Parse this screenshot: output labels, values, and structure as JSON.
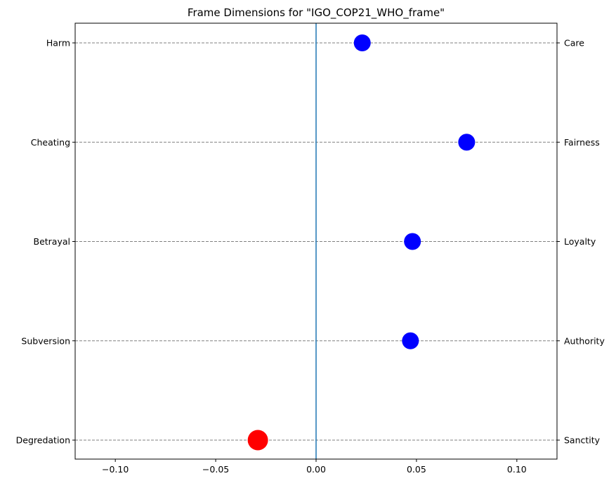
{
  "chart_data": {
    "type": "scatter",
    "title": "Frame Dimensions for \"IGO_COP21_WHO_frame\"",
    "xlim": [
      -0.12,
      0.12
    ],
    "x_ticks": [
      -0.1,
      -0.05,
      0.0,
      0.05,
      0.1
    ],
    "x_tick_labels": [
      "−0.10",
      "−0.05",
      "0.00",
      "0.05",
      "0.10"
    ],
    "grid": "horizontal dashed at each category",
    "zero_line_color": "#1f77b4",
    "categories_left": [
      "Harm",
      "Cheating",
      "Betrayal",
      "Subversion",
      "Degredation"
    ],
    "categories_right": [
      "Care",
      "Fairness",
      "Loyalty",
      "Authority",
      "Sanctity"
    ],
    "points": [
      {
        "virtue": "Care",
        "vice": "Harm",
        "value": 0.023,
        "color": "#0000ff"
      },
      {
        "virtue": "Fairness",
        "vice": "Cheating",
        "value": 0.075,
        "color": "#0000ff"
      },
      {
        "virtue": "Loyalty",
        "vice": "Betrayal",
        "value": 0.048,
        "color": "#0000ff"
      },
      {
        "virtue": "Authority",
        "vice": "Subversion",
        "value": 0.047,
        "color": "#0000ff"
      },
      {
        "virtue": "Sanctity",
        "vice": "Degredation",
        "value": -0.029,
        "color": "#ff0000"
      }
    ]
  }
}
